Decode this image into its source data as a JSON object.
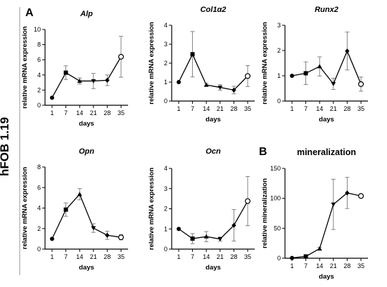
{
  "figure": {
    "row_label": "hFOB 1.19",
    "panel_letters": [
      "A",
      "B"
    ]
  },
  "chart_data": [
    {
      "type": "line",
      "title": "Alp",
      "title_italic": true,
      "xlabel": "days",
      "ylabel": "relative mRNA expression",
      "categories": [
        "1",
        "7",
        "14",
        "21",
        "28",
        "35"
      ],
      "ylim": [
        0,
        10
      ],
      "yticks": [
        0,
        2,
        4,
        6,
        8,
        10
      ],
      "series": [
        {
          "values": [
            1.0,
            4.3,
            3.2,
            3.2,
            3.3,
            6.4
          ],
          "error": [
            0,
            0.9,
            0.4,
            1.0,
            0.7,
            2.7
          ],
          "markers": [
            "circle",
            "square",
            "triangle",
            "triangle-down",
            "diamond",
            "circle-open"
          ]
        }
      ]
    },
    {
      "type": "line",
      "title": "Col1α2",
      "title_italic": true,
      "xlabel": "days",
      "ylabel": "relative mRNA expression",
      "categories": [
        "1",
        "7",
        "14",
        "21",
        "28",
        "35"
      ],
      "ylim": [
        0,
        4
      ],
      "yticks": [
        0,
        1,
        2,
        3,
        4
      ],
      "series": [
        {
          "values": [
            1.0,
            2.47,
            0.85,
            0.72,
            0.58,
            1.32
          ],
          "error": [
            0,
            1.2,
            0.08,
            0.15,
            0.2,
            0.55
          ],
          "markers": [
            "circle",
            "square",
            "triangle",
            "triangle-down",
            "diamond",
            "circle-open"
          ]
        }
      ]
    },
    {
      "type": "line",
      "title": "Runx2",
      "title_italic": true,
      "xlabel": "days",
      "ylabel": "relative mRNA expression",
      "categories": [
        "1",
        "7",
        "14",
        "21",
        "28",
        "35"
      ],
      "ylim": [
        0,
        3
      ],
      "yticks": [
        0,
        1,
        2,
        3
      ],
      "series": [
        {
          "values": [
            1.0,
            1.1,
            1.37,
            0.68,
            1.98,
            0.67
          ],
          "error": [
            0,
            0.45,
            0.38,
            0.22,
            0.75,
            0.28
          ],
          "markers": [
            "circle",
            "square",
            "triangle",
            "triangle-down",
            "diamond",
            "circle-open"
          ]
        }
      ]
    },
    {
      "type": "line",
      "title": "Opn",
      "title_italic": true,
      "xlabel": "days",
      "ylabel": "relative mRNA expression",
      "categories": [
        "1",
        "7",
        "14",
        "21",
        "28",
        "35"
      ],
      "ylim": [
        0,
        8
      ],
      "yticks": [
        0,
        2,
        4,
        6,
        8
      ],
      "series": [
        {
          "values": [
            1.0,
            3.85,
            5.35,
            2.05,
            1.35,
            1.15
          ],
          "error": [
            0,
            0.65,
            0.55,
            0.42,
            0.4,
            0.25
          ],
          "markers": [
            "circle",
            "square",
            "triangle",
            "triangle-down",
            "diamond",
            "circle-open"
          ]
        }
      ]
    },
    {
      "type": "line",
      "title": "Ocn",
      "title_italic": true,
      "xlabel": "days",
      "ylabel": "relative mRNA expression",
      "categories": [
        "1",
        "7",
        "14",
        "21",
        "28",
        "35"
      ],
      "ylim": [
        0,
        4
      ],
      "yticks": [
        0,
        1,
        2,
        3,
        4
      ],
      "series": [
        {
          "values": [
            1.0,
            0.52,
            0.62,
            0.5,
            1.18,
            2.38
          ],
          "error": [
            0,
            0.25,
            0.25,
            0.1,
            0.78,
            1.22
          ],
          "markers": [
            "circle",
            "square",
            "triangle",
            "triangle-down",
            "diamond",
            "circle-open"
          ]
        }
      ]
    },
    {
      "type": "line",
      "title": "mineralization",
      "title_italic": false,
      "xlabel": "days",
      "ylabel": "relative mineralization",
      "categories": [
        "1",
        "7",
        "14",
        "21",
        "28",
        "35"
      ],
      "ylim": [
        0,
        150
      ],
      "yticks": [
        0,
        50,
        100,
        150
      ],
      "series": [
        {
          "values": [
            0.5,
            3,
            16,
            90,
            109,
            104
          ],
          "error": [
            0,
            1,
            2,
            42,
            26,
            2
          ],
          "markers": [
            "circle",
            "square",
            "triangle",
            "triangle-down",
            "diamond",
            "circle-open"
          ]
        }
      ]
    }
  ]
}
